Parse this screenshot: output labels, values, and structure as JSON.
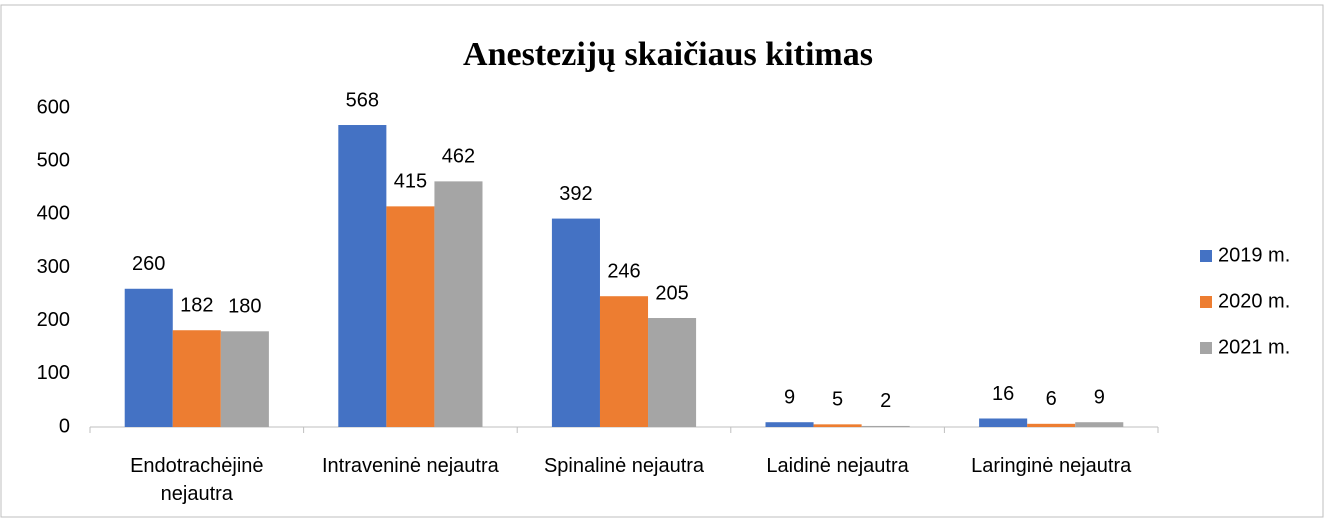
{
  "chart_data": {
    "type": "bar",
    "title": "Anestezijų skaičiaus kitimas",
    "categories": [
      "Endotrachėjinė nejautra",
      "Intraveninė nejautra",
      "Spinalinė nejautra",
      "Laidinė nejautra",
      "Laringinė nejautra"
    ],
    "series": [
      {
        "name": "2019 m.",
        "color": "#4472c4",
        "values": [
          260,
          568,
          392,
          9,
          16
        ]
      },
      {
        "name": "2020 m.",
        "color": "#ed7d31",
        "values": [
          182,
          415,
          246,
          5,
          6
        ]
      },
      {
        "name": "2021 m.",
        "color": "#a5a5a5",
        "values": [
          180,
          462,
          205,
          2,
          9
        ]
      }
    ],
    "ylim": [
      0,
      600
    ],
    "yticks": [
      0,
      100,
      200,
      300,
      400,
      500,
      600
    ],
    "grid": false,
    "legend": "right"
  }
}
